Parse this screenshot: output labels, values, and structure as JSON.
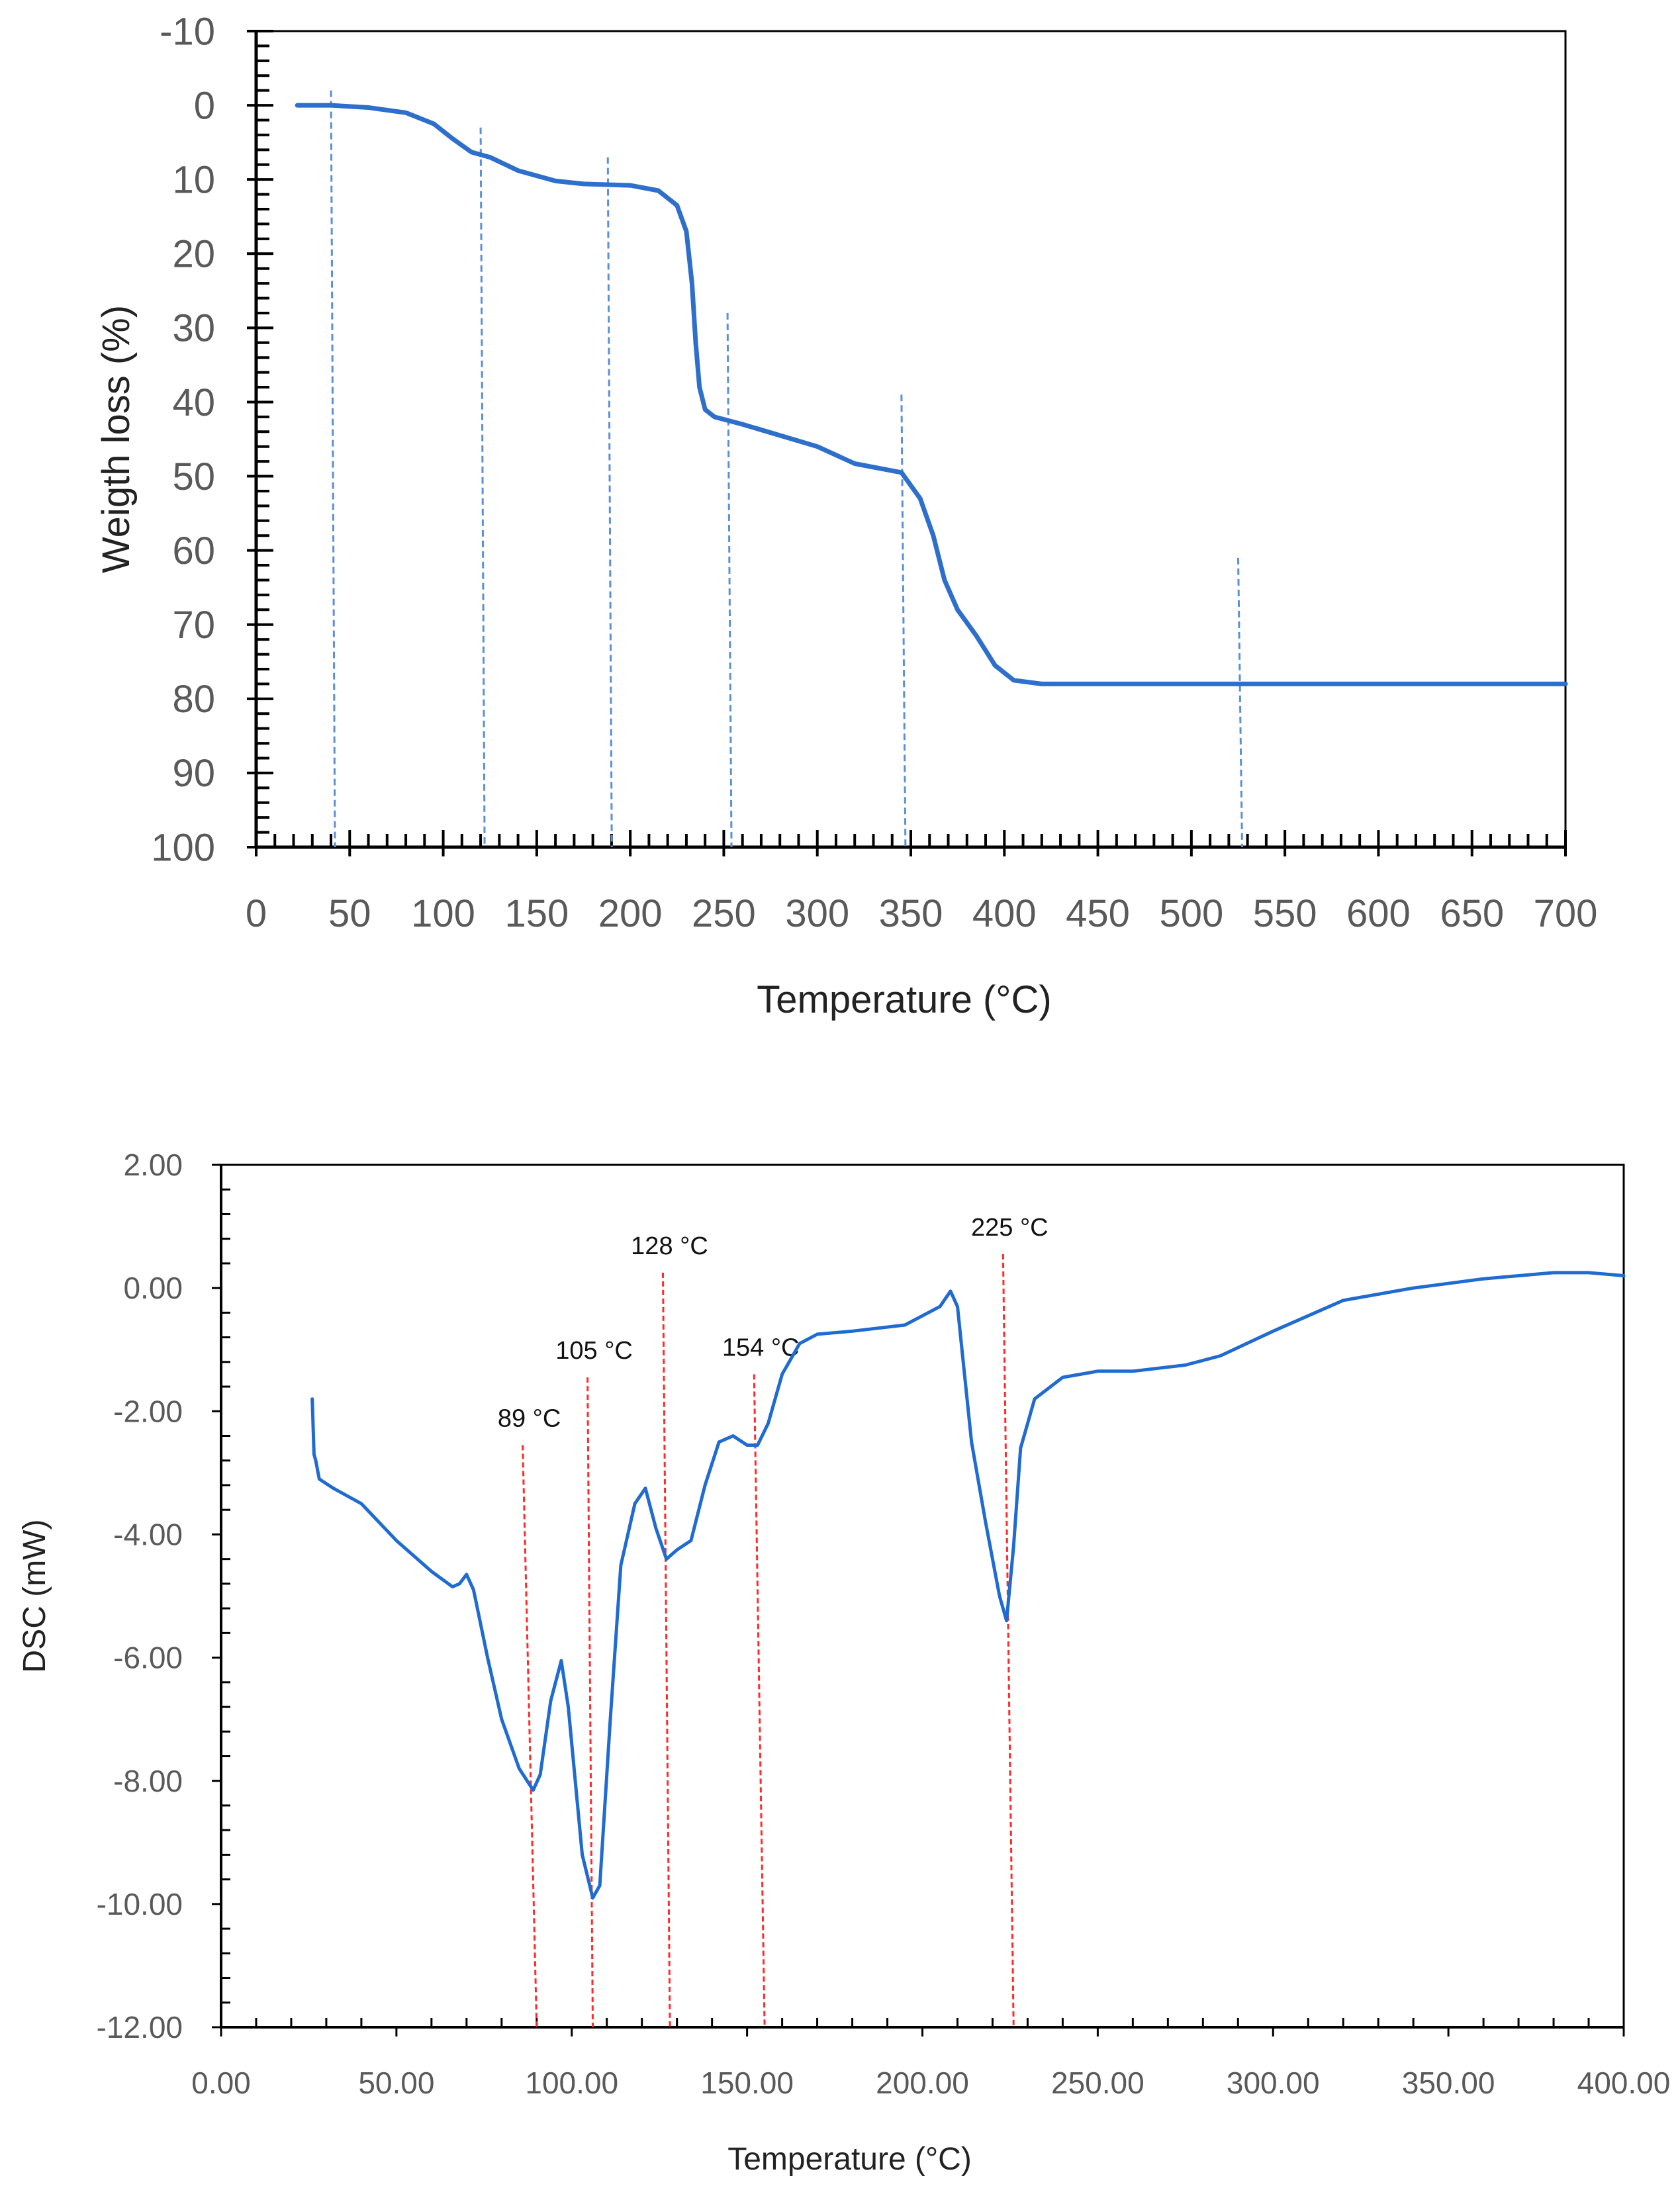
{
  "chart_data": [
    {
      "type": "line",
      "xlabel": "Temperature (°C)",
      "ylabel": "Weigth loss (%)",
      "xlim": [
        0,
        700
      ],
      "ylim": [
        -10,
        100
      ],
      "y_inverted": true,
      "x_ticks": [
        "0",
        "50",
        "100",
        "150",
        "200",
        "250",
        "300",
        "350",
        "400",
        "450",
        "500",
        "550",
        "600",
        "650",
        "700"
      ],
      "y_ticks": [
        "-10",
        "0",
        "10",
        "20",
        "30",
        "40",
        "50",
        "60",
        "70",
        "80",
        "90",
        "100"
      ],
      "grid": false,
      "line_color": "#2E6FCB",
      "marker_color": "#5B8FD6",
      "series": [
        {
          "x": [
            22,
            40,
            60,
            80,
            95,
            105,
            115,
            125,
            140,
            160,
            175,
            200,
            215,
            225,
            230,
            233,
            235,
            237,
            240,
            245,
            260,
            280,
            300,
            320,
            345,
            355,
            362,
            368,
            375,
            385,
            395,
            405,
            420,
            700
          ],
          "y": [
            0,
            0,
            0.3,
            1,
            2.5,
            4.5,
            6.3,
            7,
            8.8,
            10.2,
            10.6,
            10.8,
            11.5,
            13.5,
            17,
            24,
            32,
            38,
            41,
            42,
            43,
            44.5,
            46,
            48.3,
            49.5,
            53,
            58,
            64,
            68,
            71.5,
            75.5,
            77.5,
            78,
            78
          ]
        }
      ],
      "reference_lines": [
        {
          "x": 40,
          "from": -2
        },
        {
          "x": 120,
          "from": 3
        },
        {
          "x": 188,
          "from": 7
        },
        {
          "x": 252,
          "from": 28
        },
        {
          "x": 345,
          "from": 39
        },
        {
          "x": 525,
          "from": 61
        }
      ]
    },
    {
      "type": "line",
      "xlabel": "Temperature (°C)",
      "ylabel": "DSC (mW)",
      "xlim": [
        0,
        400
      ],
      "ylim": [
        -12,
        2
      ],
      "x_ticks": [
        "0.00",
        "50.00",
        "100.00",
        "150.00",
        "200.00",
        "250.00",
        "300.00",
        "350.00",
        "400.00"
      ],
      "y_ticks": [
        "2.00",
        "0.00",
        "-2.00",
        "-4.00",
        "-6.00",
        "-8.00",
        "-10.00",
        "-12.00"
      ],
      "grid": false,
      "line_color": "#1F6BD1",
      "marker_color": "#FF2A2A",
      "series": [
        {
          "x": [
            26,
            26.5,
            27,
            28,
            32,
            40,
            50,
            60,
            66,
            68,
            70,
            72,
            76,
            80,
            85,
            89,
            91,
            94,
            97,
            99,
            103,
            106,
            108,
            111,
            114,
            118,
            121,
            124,
            127,
            130,
            134,
            138,
            142,
            146,
            150,
            153,
            156,
            160,
            165,
            170,
            180,
            195,
            205,
            208,
            210,
            214,
            218,
            222,
            224,
            226,
            228,
            232,
            240,
            250,
            260,
            275,
            285,
            300,
            320,
            340,
            360,
            380,
            390,
            400
          ],
          "y": [
            -1.8,
            -2.7,
            -2.8,
            -3.1,
            -3.25,
            -3.5,
            -4.1,
            -4.6,
            -4.85,
            -4.8,
            -4.65,
            -4.9,
            -6,
            -7,
            -7.8,
            -8.15,
            -7.9,
            -6.7,
            -6.05,
            -6.8,
            -9.2,
            -9.9,
            -9.7,
            -7,
            -4.5,
            -3.5,
            -3.25,
            -3.9,
            -4.4,
            -4.25,
            -4.1,
            -3.2,
            -2.5,
            -2.4,
            -2.55,
            -2.55,
            -2.2,
            -1.4,
            -0.9,
            -0.75,
            -0.7,
            -0.6,
            -0.3,
            -0.05,
            -0.3,
            -2.5,
            -3.8,
            -5,
            -5.4,
            -4.2,
            -2.6,
            -1.8,
            -1.45,
            -1.35,
            -1.35,
            -1.25,
            -1.1,
            -0.7,
            -0.2,
            0,
            0.15,
            0.25,
            0.25,
            0.2
          ]
        }
      ],
      "annotations": [
        {
          "text": "89 °C",
          "x_top": 86,
          "y_top": -2.55,
          "x_bottom": 90
        },
        {
          "text": "105 °C",
          "x_top": 104.5,
          "y_top": -1.45,
          "x_bottom": 106
        },
        {
          "text": "128 °C",
          "x_top": 126,
          "y_top": 0.25,
          "x_bottom": 128
        },
        {
          "text": "154 °C",
          "x_top": 152,
          "y_top": -1.4,
          "x_bottom": 155
        },
        {
          "text": "225 °C",
          "x_top": 223,
          "y_top": 0.55,
          "x_bottom": 226
        }
      ]
    }
  ]
}
